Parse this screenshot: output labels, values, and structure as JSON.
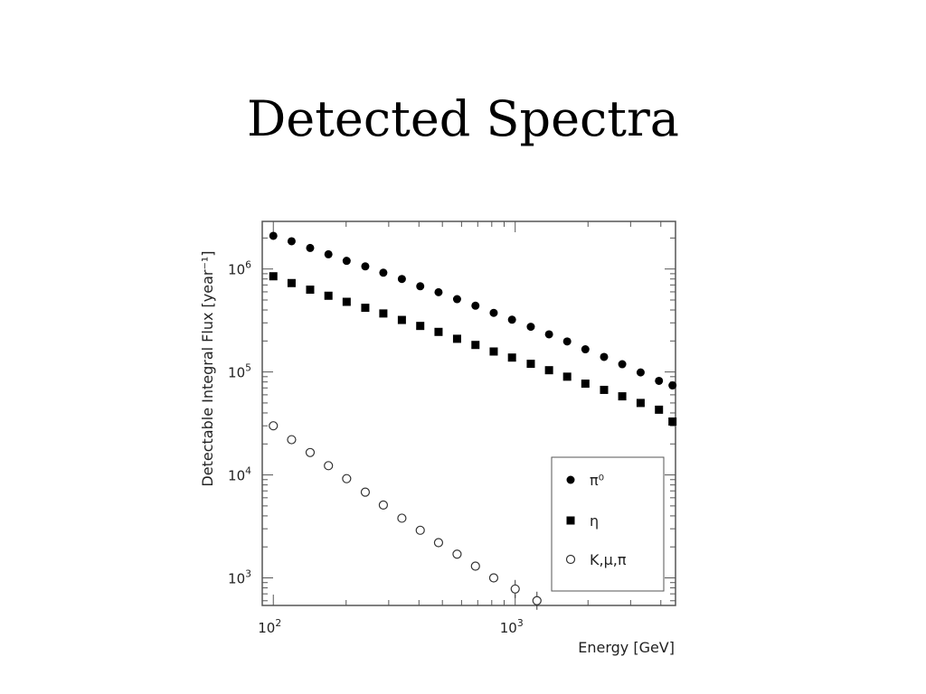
{
  "slide": {
    "title": "Detected Spectra"
  },
  "chart_data": {
    "type": "scatter",
    "xscale": "log",
    "yscale": "log",
    "xlabel": "Energy [GeV]",
    "ylabel": "Detectable Integral Flux [year⁻¹]",
    "xlim": [
      90,
      4600
    ],
    "ylim": [
      540,
      2900000
    ],
    "x_ticks": [
      {
        "value": 100,
        "base": "10",
        "exp": "2"
      },
      {
        "value": 1000,
        "base": "10",
        "exp": "3"
      }
    ],
    "y_ticks": [
      {
        "value": 1000,
        "base": "10",
        "exp": "3"
      },
      {
        "value": 10000,
        "base": "10",
        "exp": "4"
      },
      {
        "value": 100000,
        "base": "10",
        "exp": "5"
      },
      {
        "value": 1000000,
        "base": "10",
        "exp": "6"
      }
    ],
    "legend": {
      "position": "bottom-right"
    },
    "series": [
      {
        "name": "π⁰",
        "marker": "circle-filled",
        "points": [
          [
            100,
            2100000
          ],
          [
            119,
            1860000
          ],
          [
            142,
            1600000
          ],
          [
            169,
            1390000
          ],
          [
            201,
            1200000
          ],
          [
            240,
            1060000
          ],
          [
            285,
            920000
          ],
          [
            340,
            800000
          ],
          [
            405,
            680000
          ],
          [
            482,
            595000
          ],
          [
            575,
            510000
          ],
          [
            685,
            440000
          ],
          [
            815,
            375000
          ],
          [
            970,
            322000
          ],
          [
            1160,
            275000
          ],
          [
            1380,
            232000
          ],
          [
            1640,
            198000
          ],
          [
            1950,
            166000
          ],
          [
            2330,
            140000
          ],
          [
            2770,
            119000
          ],
          [
            3300,
            99000
          ],
          [
            3930,
            82000
          ],
          [
            4470,
            74000
          ]
        ]
      },
      {
        "name": "η",
        "marker": "square-filled",
        "points": [
          [
            100,
            850000
          ],
          [
            119,
            730000
          ],
          [
            142,
            630000
          ],
          [
            169,
            550000
          ],
          [
            201,
            480000
          ],
          [
            240,
            420000
          ],
          [
            285,
            370000
          ],
          [
            340,
            320000
          ],
          [
            405,
            280000
          ],
          [
            482,
            245000
          ],
          [
            575,
            210000
          ],
          [
            685,
            183000
          ],
          [
            815,
            158000
          ],
          [
            970,
            138000
          ],
          [
            1160,
            120000
          ],
          [
            1380,
            104000
          ],
          [
            1640,
            90000
          ],
          [
            1950,
            77000
          ],
          [
            2330,
            67000
          ],
          [
            2770,
            58000
          ],
          [
            3300,
            50000
          ],
          [
            3930,
            43000
          ],
          [
            4470,
            33000
          ]
        ]
      },
      {
        "name": "K,μ,π",
        "marker": "circle-open",
        "points": [
          [
            100,
            30000
          ],
          [
            119,
            22000
          ],
          [
            142,
            16500
          ],
          [
            169,
            12300
          ],
          [
            201,
            9200
          ],
          [
            240,
            6800
          ],
          [
            285,
            5100
          ],
          [
            340,
            3800
          ],
          [
            405,
            2900
          ],
          [
            482,
            2200
          ],
          [
            575,
            1700
          ],
          [
            685,
            1300
          ],
          [
            815,
            1000
          ],
          [
            1000,
            780
          ],
          [
            1230,
            600
          ]
        ]
      }
    ]
  }
}
